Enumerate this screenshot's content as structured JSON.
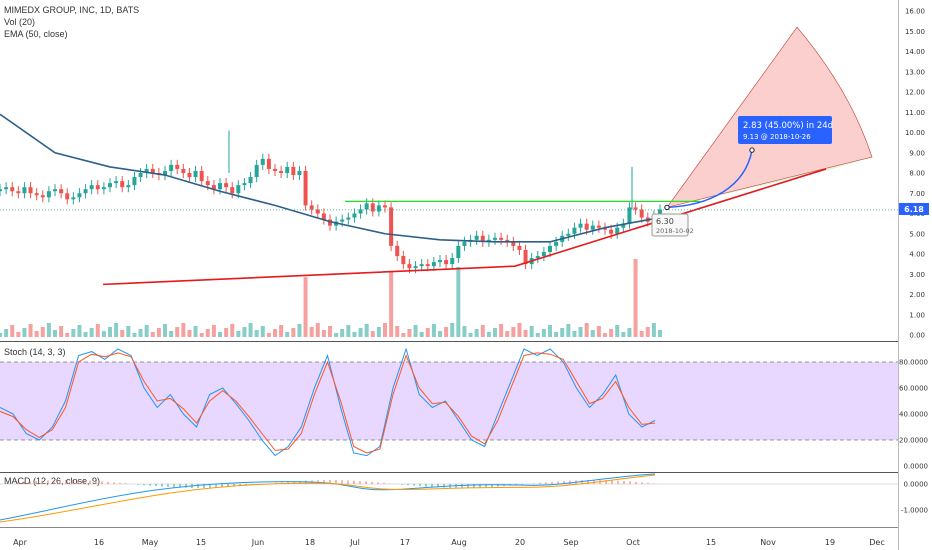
{
  "header": {
    "title": "MIMEDX GROUP, INC, 1D, BATS",
    "vol_label": "Vol (20)",
    "ema_label": "EMA (50, close)"
  },
  "stoch": {
    "label": "Stoch (14, 3, 3)"
  },
  "macd": {
    "label": "MACD (12, 26, close, 9)"
  },
  "price_tag": "6.18",
  "projection": {
    "line1": "2.83 (45.00%) in 24d",
    "line2": "9.13 @ 2018-10-26"
  },
  "tooltip": {
    "value": "6.30",
    "date": "2018-10-02"
  },
  "colors": {
    "up": "#26a69a",
    "down": "#ef5350",
    "ema": "#2c5f8a",
    "trend": "#e41a1c",
    "resist": "#22dd22",
    "stoch_k": "#2196f3",
    "stoch_d": "#ff5722",
    "accent": "#2962ff"
  },
  "chart_data": [
    {
      "type": "candlestick",
      "title": "MIMEDX GROUP, INC, 1D, BATS",
      "y_ticks": [
        "16.00",
        "15.00",
        "14.00",
        "13.00",
        "12.00",
        "11.00",
        "10.00",
        "9.00",
        "8.00",
        "7.00",
        "6.00",
        "5.00",
        "4.00",
        "3.00",
        "2.00",
        "1.00",
        "0.00"
      ],
      "ylim": [
        -0.3,
        16.5
      ],
      "x_ticks": [
        "Apr",
        "16",
        "May",
        "15",
        "Jun",
        "18",
        "Jul",
        "17",
        "Aug",
        "20",
        "Sep",
        "Oct",
        "15",
        "Nov",
        "19",
        "Dec"
      ],
      "close_series": [
        7.2,
        7.3,
        7.1,
        7.0,
        7.3,
        7.0,
        6.9,
        6.8,
        7.1,
        7.2,
        7.0,
        6.7,
        6.8,
        7.0,
        7.2,
        7.4,
        7.2,
        7.3,
        7.5,
        7.6,
        7.3,
        7.4,
        7.8,
        8.0,
        8.2,
        8.0,
        7.9,
        8.1,
        8.4,
        8.2,
        8.0,
        7.8,
        8.1,
        7.6,
        7.4,
        7.2,
        7.5,
        7.3,
        7.0,
        7.4,
        7.5,
        7.8,
        8.4,
        8.7,
        8.2,
        8.1,
        8.0,
        8.3,
        7.9,
        8.1,
        6.4,
        6.2,
        6.0,
        5.7,
        5.4,
        5.6,
        5.7,
        5.8,
        6.0,
        6.2,
        6.5,
        6.1,
        6.4,
        6.3,
        4.4,
        3.9,
        3.5,
        3.3,
        3.4,
        3.5,
        3.4,
        3.6,
        3.7,
        3.5,
        3.8,
        4.4,
        4.6,
        4.7,
        4.9,
        4.6,
        4.7,
        4.8,
        4.7,
        4.6,
        4.4,
        4.2,
        3.5,
        3.8,
        3.9,
        4.1,
        4.4,
        4.6,
        4.9,
        5.0,
        5.3,
        5.5,
        5.2,
        5.4,
        5.3,
        5.2,
        5.0,
        5.3,
        5.5,
        6.3,
        6.2,
        5.8,
        5.6,
        5.9,
        6.2
      ],
      "ema_50": [
        10.9,
        9.0,
        8.3,
        7.9,
        7.1,
        6.4,
        5.6,
        5.0,
        4.7,
        4.6,
        4.6,
        5.3,
        5.8
      ],
      "volume_spikes": [
        {
          "x": "Jun",
          "value": 3.0
        },
        {
          "x": "Jul",
          "value": 3.3
        },
        {
          "x": "17",
          "value": 3.5
        },
        {
          "x": "Oct",
          "value": 3.9
        }
      ],
      "trendline_support": [
        {
          "price": 2.5
        },
        {
          "price": 3.4
        },
        {
          "price": 8.2
        }
      ],
      "resistance_line": 6.6,
      "last_price": 6.18,
      "projection": {
        "change": 2.83,
        "pct": 45.0,
        "days": 24,
        "target": 9.13,
        "target_date": "2018-10-26",
        "fan_top": 15.2
      },
      "annotation": {
        "value": 6.3,
        "date": "2018-10-02"
      }
    },
    {
      "type": "line",
      "title": "Stoch (14, 3, 3)",
      "y_ticks": [
        "80.0000",
        "60.0000",
        "40.0000",
        "20.0000",
        "0.0000"
      ],
      "bands": [
        20,
        80
      ],
      "series": [
        {
          "values": [
            45,
            40,
            25,
            20,
            30,
            50,
            85,
            88,
            82,
            90,
            85,
            60,
            45,
            55,
            40,
            30,
            55,
            60,
            48,
            35,
            20,
            8,
            15,
            30,
            60,
            85,
            45,
            10,
            8,
            15,
            60,
            90,
            55,
            45,
            50,
            35,
            20,
            15,
            40,
            65,
            90,
            85,
            90,
            80,
            60,
            45,
            55,
            70,
            40,
            30,
            35
          ]
        },
        {
          "values": [
            42,
            38,
            28,
            22,
            28,
            45,
            80,
            86,
            84,
            87,
            84,
            65,
            50,
            52,
            44,
            33,
            50,
            58,
            50,
            38,
            25,
            12,
            13,
            25,
            55,
            80,
            50,
            15,
            10,
            13,
            55,
            85,
            60,
            48,
            49,
            38,
            23,
            17,
            35,
            60,
            85,
            87,
            86,
            82,
            65,
            48,
            52,
            65,
            45,
            32,
            33
          ]
        }
      ]
    },
    {
      "type": "line",
      "title": "MACD (12, 26, close, 9)",
      "y_ticks": [
        "0.0000",
        "-1.0000"
      ]
    }
  ]
}
